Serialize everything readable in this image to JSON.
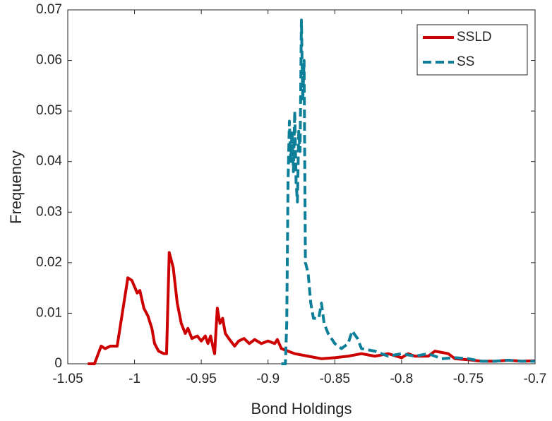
{
  "chart_data": {
    "type": "line",
    "xlabel": "Bond Holdings",
    "ylabel": "Frequency",
    "xlim": [
      -1.05,
      -0.7
    ],
    "xticks": [
      -1.05,
      -1,
      -0.95,
      -0.9,
      -0.85,
      -0.8,
      -0.75,
      -0.7
    ],
    "ylim": [
      0,
      0.07
    ],
    "yticks": [
      0,
      0.01,
      0.02,
      0.03,
      0.04,
      0.05,
      0.06,
      0.07
    ],
    "legend": "top-right",
    "series": [
      {
        "name": "SSLD",
        "color": "#cc0000",
        "line_style": "solid",
        "x": [
          -1.035,
          -1.03,
          -1.025,
          -1.022,
          -1.018,
          -1.013,
          -1.005,
          -1.002,
          -0.998,
          -0.996,
          -0.993,
          -0.99,
          -0.987,
          -0.985,
          -0.982,
          -0.978,
          -0.976,
          -0.974,
          -0.971,
          -0.968,
          -0.965,
          -0.962,
          -0.96,
          -0.957,
          -0.953,
          -0.95,
          -0.947,
          -0.945,
          -0.943,
          -0.941,
          -0.94,
          -0.938,
          -0.936,
          -0.934,
          -0.932,
          -0.928,
          -0.925,
          -0.922,
          -0.918,
          -0.914,
          -0.91,
          -0.905,
          -0.9,
          -0.895,
          -0.893,
          -0.89,
          -0.885,
          -0.88,
          -0.87,
          -0.86,
          -0.85,
          -0.84,
          -0.83,
          -0.82,
          -0.81,
          -0.8,
          -0.795,
          -0.79,
          -0.78,
          -0.775,
          -0.765,
          -0.76,
          -0.75,
          -0.74,
          -0.73,
          -0.72,
          -0.71,
          -0.7
        ],
        "values": [
          0,
          0,
          0.0035,
          0.003,
          0.0035,
          0.0035,
          0.017,
          0.0165,
          0.014,
          0.0145,
          0.011,
          0.0095,
          0.007,
          0.004,
          0.0025,
          0.002,
          0.002,
          0.022,
          0.019,
          0.012,
          0.008,
          0.006,
          0.007,
          0.005,
          0.0055,
          0.0045,
          0.0055,
          0.004,
          0.0055,
          0.003,
          0.002,
          0.011,
          0.008,
          0.009,
          0.006,
          0.0045,
          0.0035,
          0.0045,
          0.005,
          0.004,
          0.0048,
          0.004,
          0.0045,
          0.004,
          0.0048,
          0.003,
          0.0025,
          0.002,
          0.0015,
          0.001,
          0.0012,
          0.0015,
          0.002,
          0.0015,
          0.002,
          0.0012,
          0.002,
          0.0015,
          0.0015,
          0.0025,
          0.002,
          0.001,
          0.0008,
          0.0005,
          0.0005,
          0.0007,
          0.0005,
          0.0006
        ]
      },
      {
        "name": "SS",
        "color": "#0e7f98",
        "line_style": "dashed",
        "x": [
          -0.89,
          -0.887,
          -0.886,
          -0.885,
          -0.884,
          -0.883,
          -0.882,
          -0.881,
          -0.88,
          -0.879,
          -0.878,
          -0.877,
          -0.876,
          -0.875,
          -0.874,
          -0.873,
          -0.872,
          -0.87,
          -0.868,
          -0.866,
          -0.862,
          -0.86,
          -0.858,
          -0.855,
          -0.85,
          -0.845,
          -0.84,
          -0.837,
          -0.833,
          -0.83,
          -0.82,
          -0.81,
          -0.8,
          -0.79,
          -0.78,
          -0.77,
          -0.76,
          -0.75,
          -0.74,
          -0.73,
          -0.72,
          -0.71,
          -0.7
        ],
        "values": [
          0,
          0,
          0.008,
          0.036,
          0.048,
          0.04,
          0.046,
          0.038,
          0.05,
          0.036,
          0.032,
          0.046,
          0.042,
          0.068,
          0.052,
          0.06,
          0.02,
          0.018,
          0.012,
          0.009,
          0.009,
          0.012,
          0.008,
          0.006,
          0.004,
          0.003,
          0.004,
          0.0065,
          0.005,
          0.003,
          0.0025,
          0.0015,
          0.002,
          0.0015,
          0.002,
          0.001,
          0.0012,
          0.001,
          0.0005,
          0.0005,
          0.0007,
          0.0005,
          0.0005
        ]
      }
    ]
  }
}
